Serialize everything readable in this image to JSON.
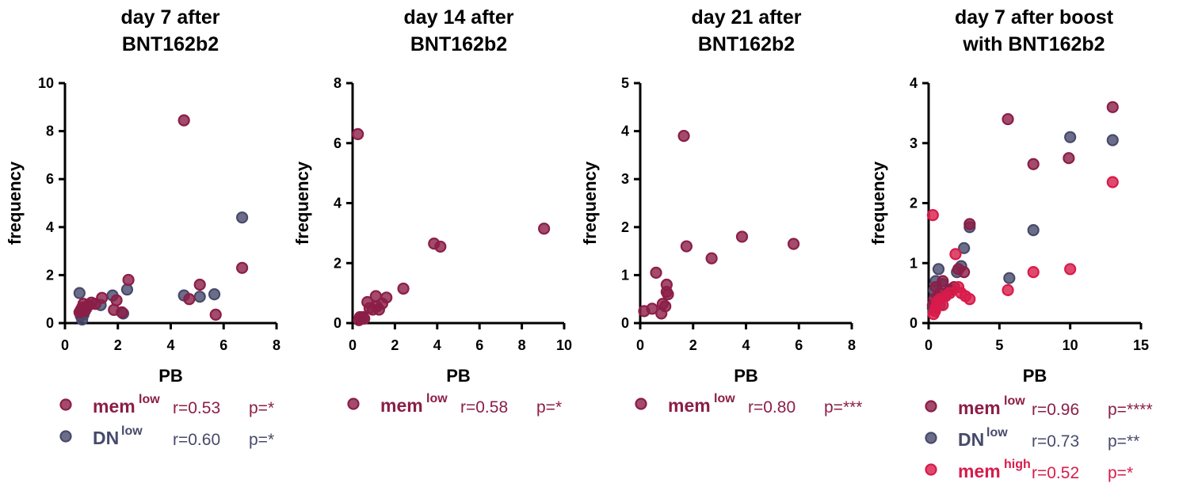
{
  "colors": {
    "mem_low": "#8b1e47",
    "DN_low": "#474a6b",
    "mem_high": "#d81b4a",
    "axis": "#000000"
  },
  "chart_data": [
    {
      "type": "scatter",
      "title": [
        "day 7 after",
        "BNT162b2"
      ],
      "xlabel": "PB",
      "ylabel": "frequency",
      "xlim": [
        0,
        8
      ],
      "ylim": [
        0,
        10
      ],
      "xticks": [
        "0",
        "2",
        "4",
        "6",
        "8"
      ],
      "yticks": [
        "0",
        "2",
        "4",
        "6",
        "8",
        "10"
      ],
      "grid": false,
      "series": [
        {
          "key": "DN_low",
          "label": "DN",
          "sup": "low",
          "r": "r=0.60",
          "p": "p=*",
          "points": [
            [
              0.55,
              1.25
            ],
            [
              0.6,
              0.3
            ],
            [
              0.65,
              0.15
            ],
            [
              0.7,
              0.35
            ],
            [
              0.8,
              0.6
            ],
            [
              0.9,
              0.75
            ],
            [
              1.35,
              0.75
            ],
            [
              1.8,
              1.15
            ],
            [
              2.2,
              0.4
            ],
            [
              2.35,
              1.4
            ],
            [
              4.5,
              1.15
            ],
            [
              5.1,
              1.1
            ],
            [
              5.65,
              1.2
            ],
            [
              6.7,
              4.4
            ]
          ]
        },
        {
          "key": "mem_low",
          "label": "mem",
          "sup": "low",
          "r": "r=0.53",
          "p": "p=*",
          "points": [
            [
              0.55,
              0.45
            ],
            [
              0.6,
              0.55
            ],
            [
              0.65,
              0.65
            ],
            [
              0.7,
              0.8
            ],
            [
              0.75,
              0.5
            ],
            [
              0.85,
              0.7
            ],
            [
              1.0,
              0.85
            ],
            [
              1.15,
              0.8
            ],
            [
              1.4,
              1.05
            ],
            [
              1.85,
              0.55
            ],
            [
              1.95,
              0.95
            ],
            [
              2.15,
              0.45
            ],
            [
              2.4,
              1.8
            ],
            [
              4.5,
              8.45
            ],
            [
              4.7,
              1.0
            ],
            [
              5.1,
              1.6
            ],
            [
              5.7,
              0.35
            ],
            [
              6.7,
              2.3
            ]
          ]
        }
      ]
    },
    {
      "type": "scatter",
      "title": [
        "day 14 after",
        "BNT162b2"
      ],
      "xlabel": "PB",
      "ylabel": "frequency",
      "xlim": [
        0,
        10
      ],
      "ylim": [
        0,
        8
      ],
      "xticks": [
        "0",
        "2",
        "4",
        "6",
        "8",
        "10"
      ],
      "yticks": [
        "0",
        "2",
        "4",
        "6",
        "8"
      ],
      "grid": false,
      "series": [
        {
          "key": "mem_low",
          "label": "mem",
          "sup": "low",
          "r": "r=0.58",
          "p": "p=*",
          "points": [
            [
              0.25,
              6.3
            ],
            [
              0.3,
              0.1
            ],
            [
              0.35,
              0.2
            ],
            [
              0.4,
              0.15
            ],
            [
              0.5,
              0.2
            ],
            [
              0.55,
              0.15
            ],
            [
              0.7,
              0.7
            ],
            [
              0.8,
              0.5
            ],
            [
              0.95,
              0.45
            ],
            [
              1.1,
              0.9
            ],
            [
              1.15,
              0.55
            ],
            [
              1.25,
              0.45
            ],
            [
              1.4,
              0.65
            ],
            [
              1.6,
              0.85
            ],
            [
              2.4,
              1.15
            ],
            [
              3.85,
              2.65
            ],
            [
              4.15,
              2.55
            ],
            [
              9.05,
              3.15
            ]
          ]
        }
      ]
    },
    {
      "type": "scatter",
      "title": [
        "day 21 after",
        "BNT162b2"
      ],
      "xlabel": "PB",
      "ylabel": "frequency",
      "xlim": [
        0,
        8
      ],
      "ylim": [
        0,
        5
      ],
      "xticks": [
        "0",
        "2",
        "4",
        "6",
        "8"
      ],
      "yticks": [
        "0",
        "1",
        "2",
        "3",
        "4",
        "5"
      ],
      "grid": false,
      "series": [
        {
          "key": "mem_low",
          "label": "mem",
          "sup": "low",
          "r": "r=0.80",
          "p": "p=***",
          "points": [
            [
              0.15,
              0.25
            ],
            [
              0.45,
              0.3
            ],
            [
              0.6,
              1.05
            ],
            [
              0.8,
              0.2
            ],
            [
              0.85,
              0.4
            ],
            [
              0.95,
              0.35
            ],
            [
              1.0,
              0.8
            ],
            [
              1.0,
              0.65
            ],
            [
              1.05,
              0.6
            ],
            [
              1.65,
              3.9
            ],
            [
              1.75,
              1.6
            ],
            [
              2.7,
              1.35
            ],
            [
              3.85,
              1.8
            ],
            [
              5.8,
              1.65
            ]
          ]
        }
      ]
    },
    {
      "type": "scatter",
      "title": [
        "day 7 after boost",
        "with BNT162b2"
      ],
      "xlabel": "PB",
      "ylabel": "frequency",
      "xlim": [
        0,
        15
      ],
      "ylim": [
        0,
        4
      ],
      "xticks": [
        "0",
        "5",
        "10",
        "15"
      ],
      "yticks": [
        "0",
        "1",
        "2",
        "3",
        "4"
      ],
      "grid": false,
      "series": [
        {
          "key": "DN_low",
          "label": "DN",
          "sup": "low",
          "r": "r=0.73",
          "p": "p=**",
          "points": [
            [
              0.3,
              0.25
            ],
            [
              0.4,
              0.55
            ],
            [
              0.5,
              0.7
            ],
            [
              0.6,
              0.45
            ],
            [
              0.7,
              0.9
            ],
            [
              0.8,
              0.3
            ],
            [
              1.0,
              0.65
            ],
            [
              1.3,
              0.5
            ],
            [
              1.6,
              0.55
            ],
            [
              2.0,
              0.85
            ],
            [
              2.3,
              0.95
            ],
            [
              2.5,
              1.25
            ],
            [
              2.9,
              1.6
            ],
            [
              5.7,
              0.75
            ],
            [
              7.4,
              1.55
            ],
            [
              10.0,
              3.1
            ],
            [
              13.0,
              3.05
            ]
          ]
        },
        {
          "key": "mem_low",
          "label": "mem",
          "sup": "low",
          "r": "r=0.96",
          "p": "p=****",
          "points": [
            [
              0.3,
              0.3
            ],
            [
              0.4,
              0.4
            ],
            [
              0.5,
              0.6
            ],
            [
              0.6,
              0.35
            ],
            [
              0.8,
              0.5
            ],
            [
              1.0,
              0.7
            ],
            [
              1.2,
              0.45
            ],
            [
              1.5,
              0.55
            ],
            [
              1.8,
              0.6
            ],
            [
              2.1,
              0.9
            ],
            [
              2.5,
              0.85
            ],
            [
              2.9,
              1.65
            ],
            [
              5.6,
              3.4
            ],
            [
              7.4,
              2.65
            ],
            [
              9.9,
              2.75
            ],
            [
              13.0,
              3.6
            ]
          ]
        },
        {
          "key": "mem_high",
          "label": "mem",
          "sup": "high",
          "r": "r=0.52",
          "p": "p=*",
          "points": [
            [
              0.3,
              1.8
            ],
            [
              0.35,
              0.15
            ],
            [
              0.45,
              0.2
            ],
            [
              0.5,
              0.25
            ],
            [
              0.6,
              0.35
            ],
            [
              0.8,
              0.4
            ],
            [
              1.0,
              0.3
            ],
            [
              1.2,
              0.45
            ],
            [
              1.5,
              0.5
            ],
            [
              1.9,
              1.15
            ],
            [
              2.1,
              0.6
            ],
            [
              2.3,
              0.5
            ],
            [
              2.6,
              0.45
            ],
            [
              2.9,
              0.4
            ],
            [
              5.6,
              0.55
            ],
            [
              7.4,
              0.85
            ],
            [
              10.0,
              0.9
            ],
            [
              13.0,
              2.35
            ]
          ]
        }
      ]
    }
  ]
}
